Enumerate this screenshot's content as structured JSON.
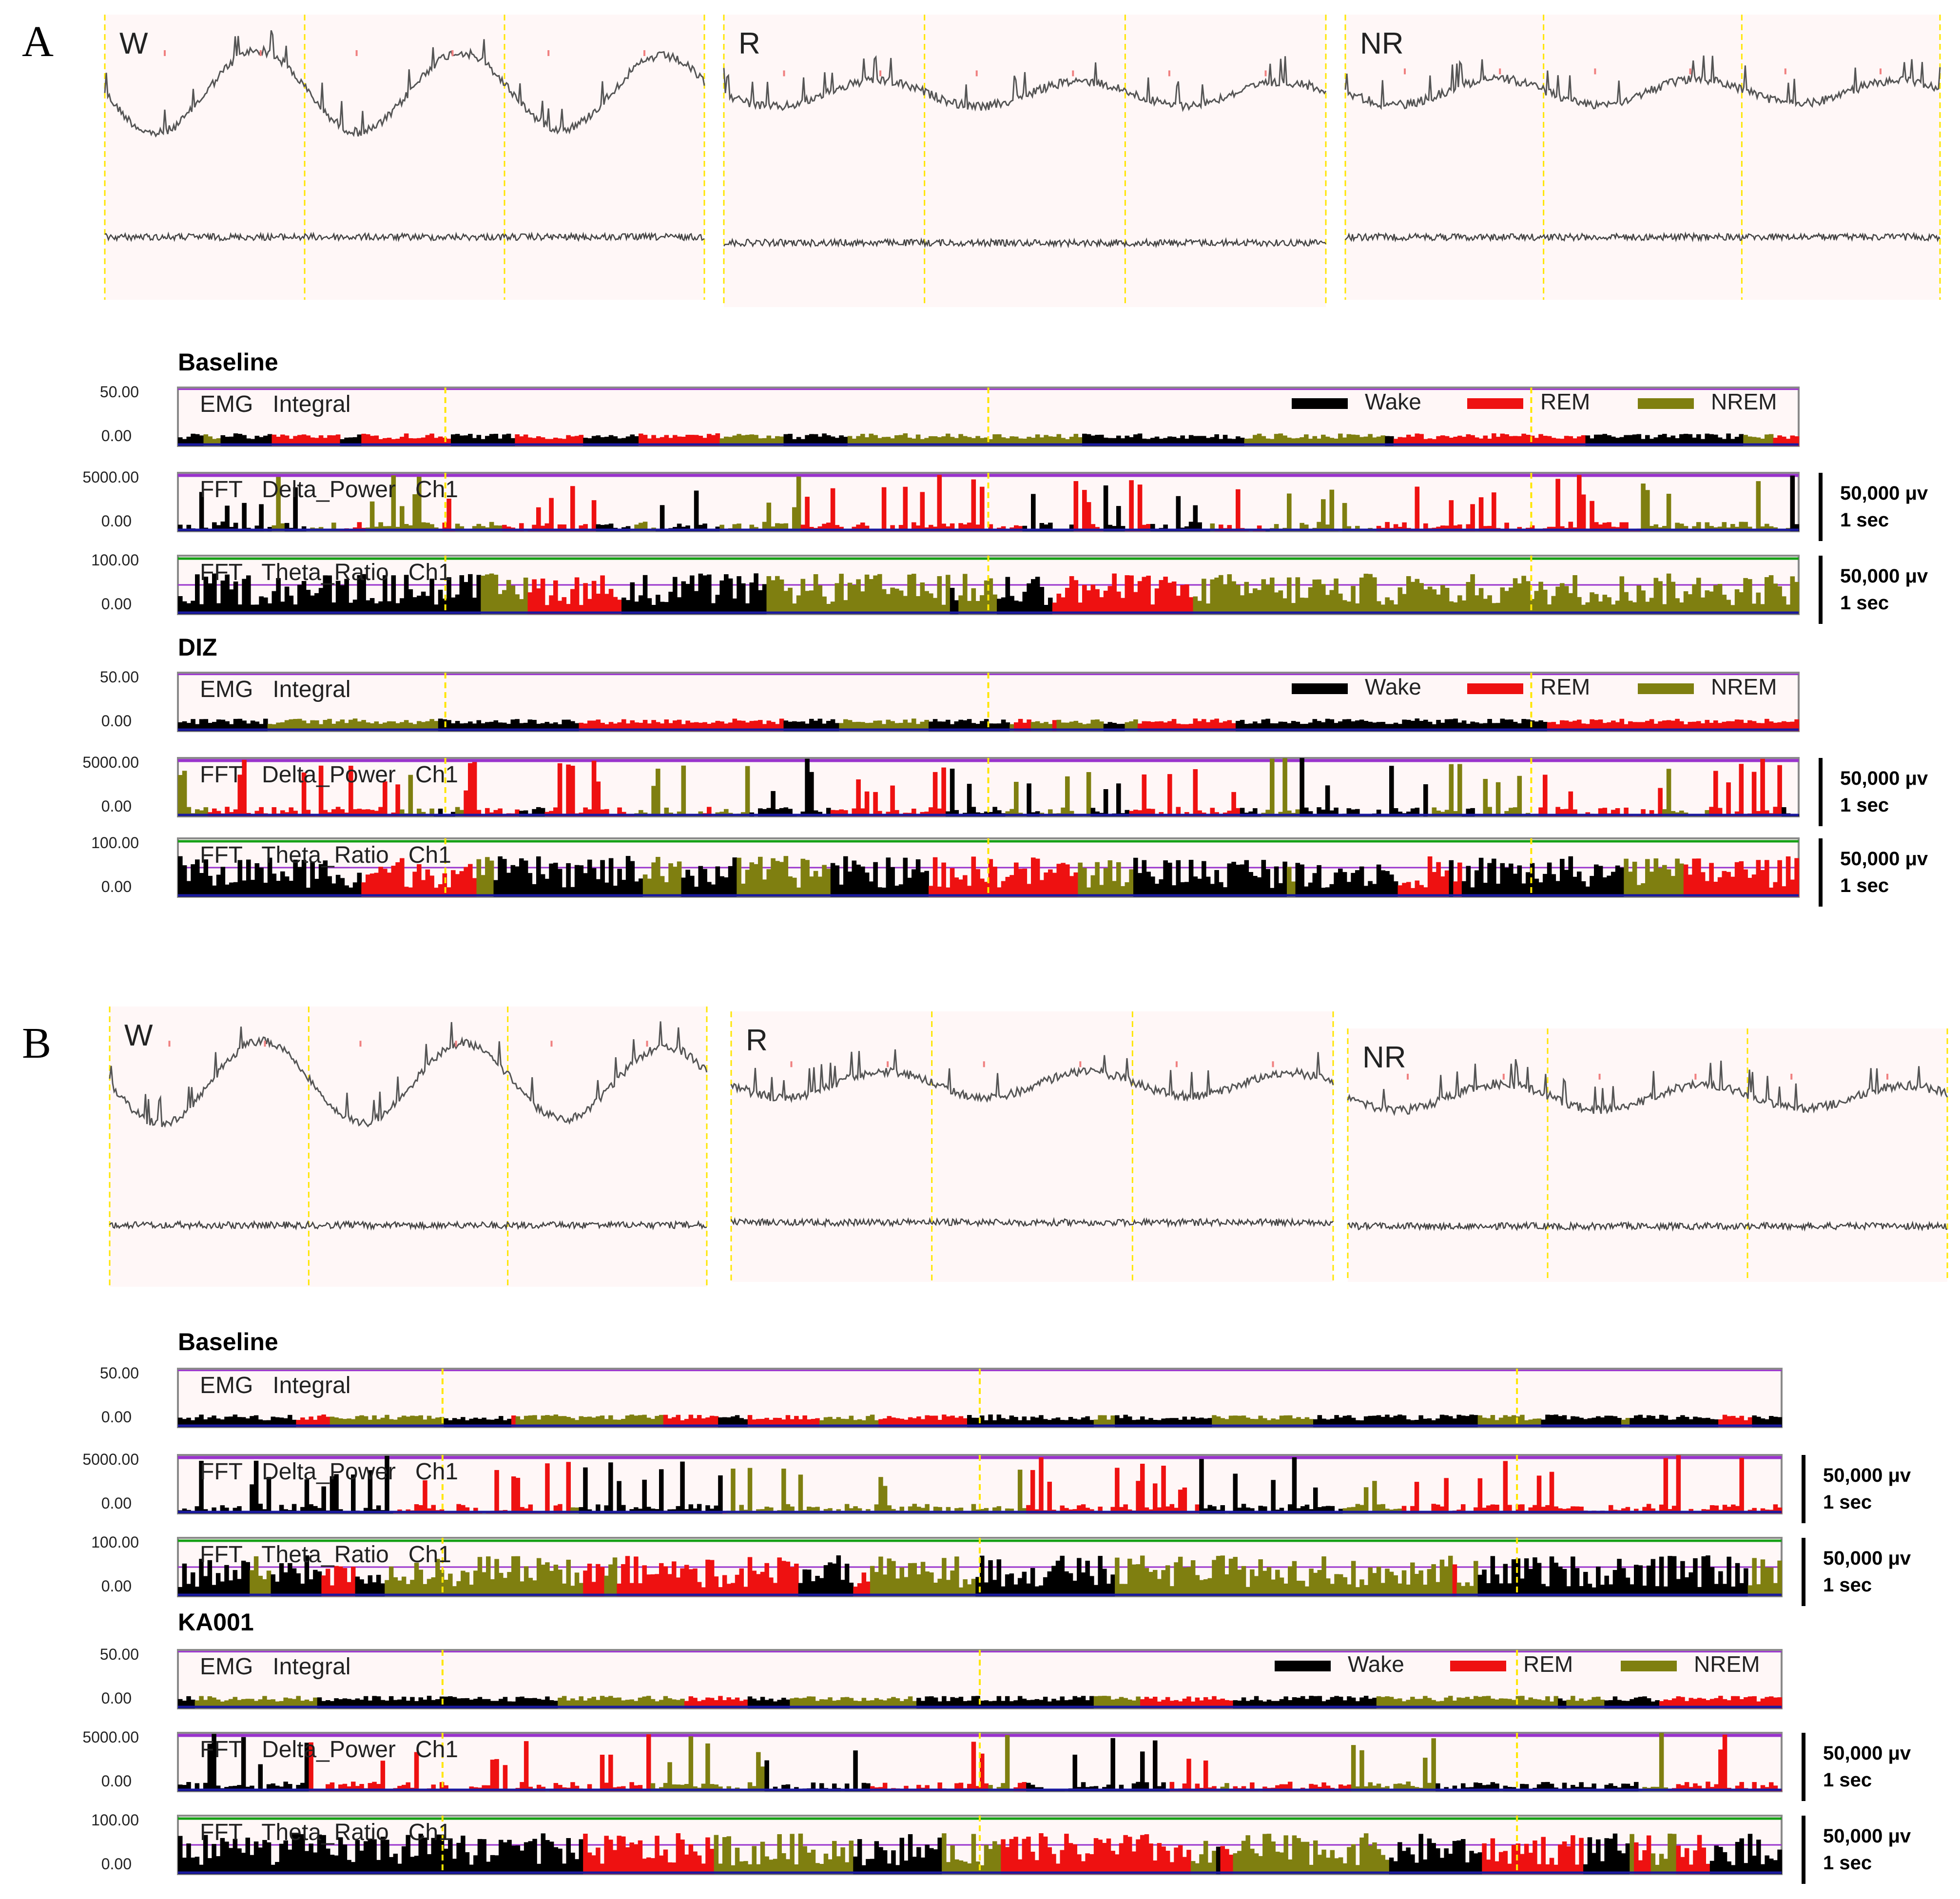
{
  "panels": [
    {
      "letter": "A",
      "traces": [
        "W",
        "R",
        "NR"
      ],
      "groups": [
        {
          "title": "Baseline",
          "legend": true
        },
        {
          "title": "DIZ",
          "legend": true
        }
      ]
    },
    {
      "letter": "B",
      "traces": [
        "W",
        "R",
        "NR"
      ],
      "groups": [
        {
          "title": "Baseline",
          "legend": false
        },
        {
          "title": "KA001",
          "legend": true
        }
      ]
    }
  ],
  "channels": [
    {
      "label": "EMG   Integral",
      "ymax": "50.00",
      "ymin": "0.00",
      "scale": false
    },
    {
      "label": "FFT   Delta_Power   Ch1",
      "ymax": "5000.00",
      "ymin": "0.00",
      "scale": true
    },
    {
      "label": "FFT   Theta_Ratio   Ch1",
      "ymax": "100.00",
      "ymin": "0.00",
      "scale": true
    }
  ],
  "scale_bar": {
    "amplitude": "50,000 μv",
    "time": "1 sec"
  },
  "legend": [
    {
      "label": "Wake",
      "color": "#000000"
    },
    {
      "label": "REM",
      "color": "#ee1111"
    },
    {
      "label": "NREM",
      "color": "#7f7f10"
    }
  ],
  "colors": {
    "panel_bg": "#fff7f7",
    "trace": "#555555",
    "spike_marker": "#f08080",
    "cursor": "#ffe600",
    "threshold": "#9933cc",
    "baseline": "#1a1aa0",
    "theta_top": "#16a016"
  }
}
